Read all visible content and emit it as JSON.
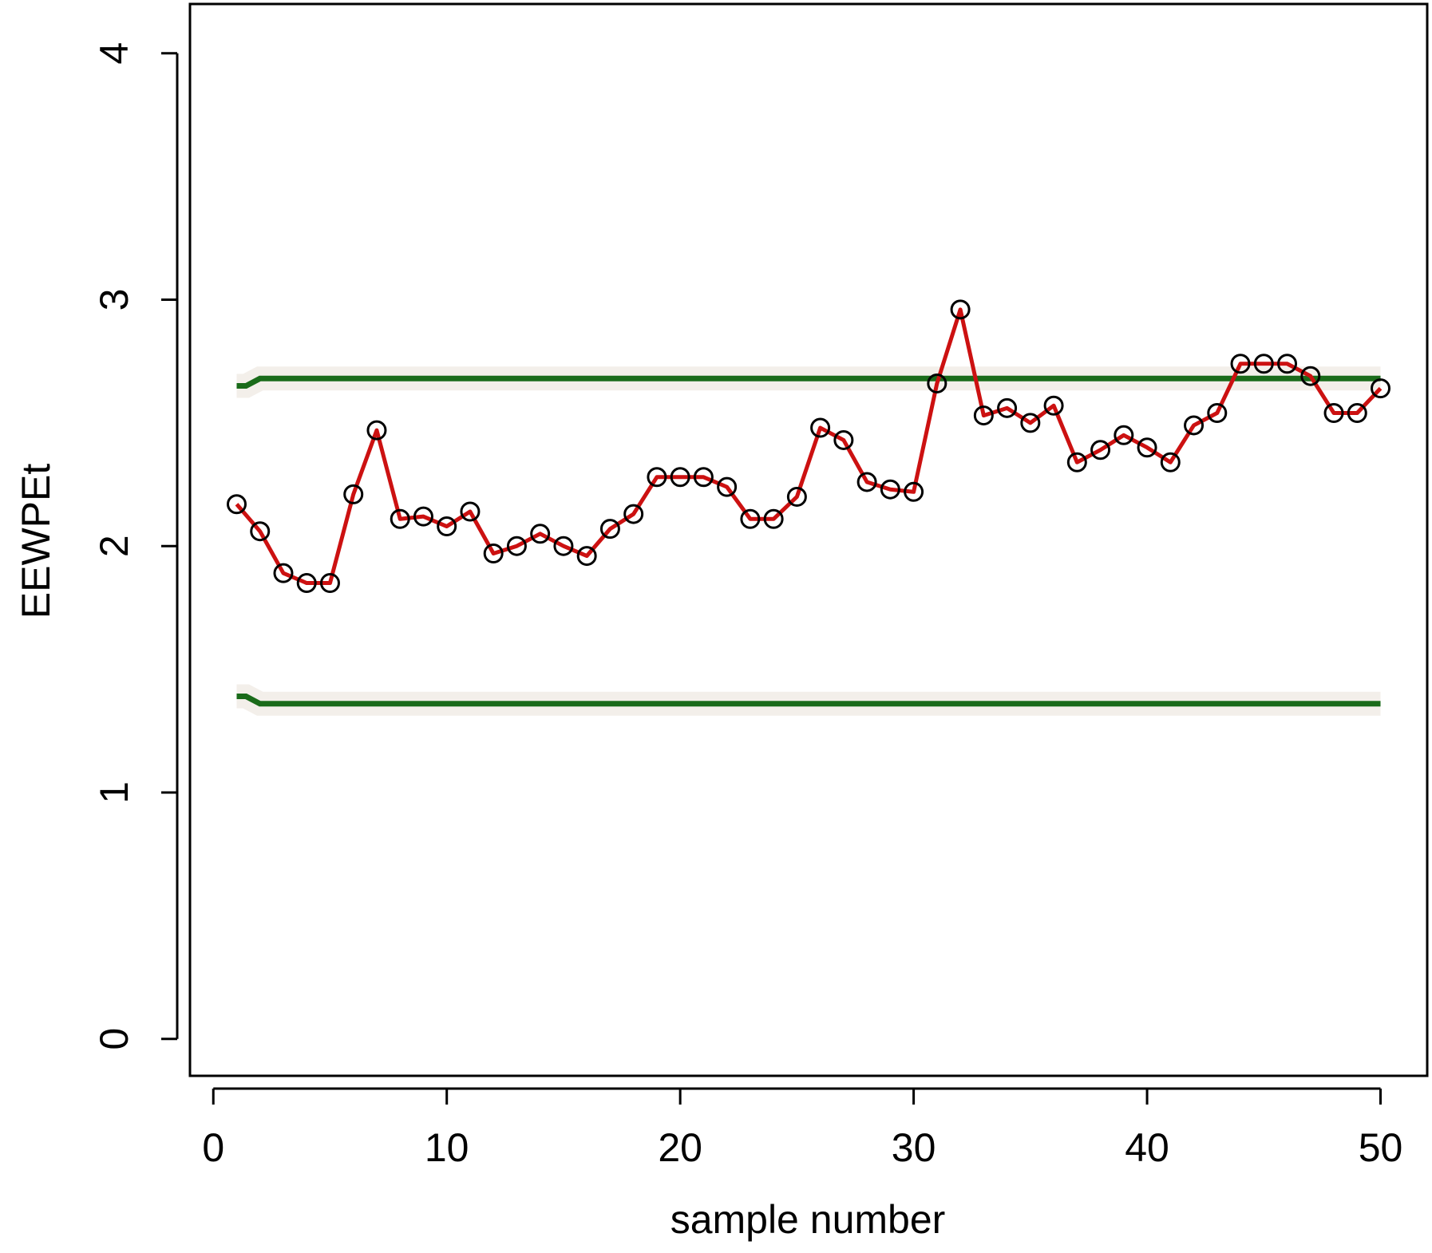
{
  "chart_data": {
    "type": "line",
    "title": "",
    "xlabel": "sample number",
    "ylabel": "EEWPEt",
    "xlim": [
      -1,
      52
    ],
    "ylim": [
      -0.15,
      4.2
    ],
    "xticks": [
      0,
      10,
      20,
      30,
      40,
      50
    ],
    "yticks": [
      0,
      1,
      2,
      3,
      4
    ],
    "x_tick_labels": [
      "0",
      "10",
      "20",
      "30",
      "40",
      "50"
    ],
    "y_tick_labels": [
      "0",
      "1",
      "2",
      "3",
      "4"
    ],
    "grid": false,
    "legend": "none",
    "series": [
      {
        "x": [
          1,
          2,
          3,
          4,
          5,
          6,
          7,
          8,
          9,
          10,
          11,
          12,
          13,
          14,
          15,
          16,
          17,
          18,
          19,
          20,
          21,
          22,
          23,
          24,
          25,
          26,
          27,
          28,
          29,
          30,
          31,
          32,
          33,
          34,
          35,
          36,
          37,
          38,
          39,
          40,
          41,
          42,
          43,
          44,
          45,
          46,
          47,
          48,
          49,
          50
        ],
        "values": [
          2.17,
          2.06,
          1.89,
          1.85,
          1.85,
          2.21,
          2.47,
          2.11,
          2.12,
          2.08,
          2.14,
          1.97,
          2.0,
          2.05,
          2.0,
          1.96,
          2.07,
          2.13,
          2.28,
          2.28,
          2.28,
          2.24,
          2.11,
          2.11,
          2.2,
          2.48,
          2.43,
          2.26,
          2.23,
          2.22,
          2.66,
          2.96,
          2.53,
          2.56,
          2.5,
          2.57,
          2.34,
          2.39,
          2.45,
          2.4,
          2.34,
          2.49,
          2.54,
          2.74,
          2.74,
          2.74,
          2.69,
          2.54,
          2.54,
          2.64
        ],
        "color": "#cc1111",
        "marker": "open-circle",
        "marker_color": "#000000"
      },
      {
        "x": [
          1,
          1.4,
          2,
          50
        ],
        "values": [
          2.65,
          2.65,
          2.68,
          2.68
        ],
        "color": "#1a6b1a"
      },
      {
        "x": [
          1,
          1.4,
          2,
          50
        ],
        "values": [
          1.39,
          1.39,
          1.36,
          1.36
        ],
        "color": "#1a6b1a"
      }
    ]
  }
}
